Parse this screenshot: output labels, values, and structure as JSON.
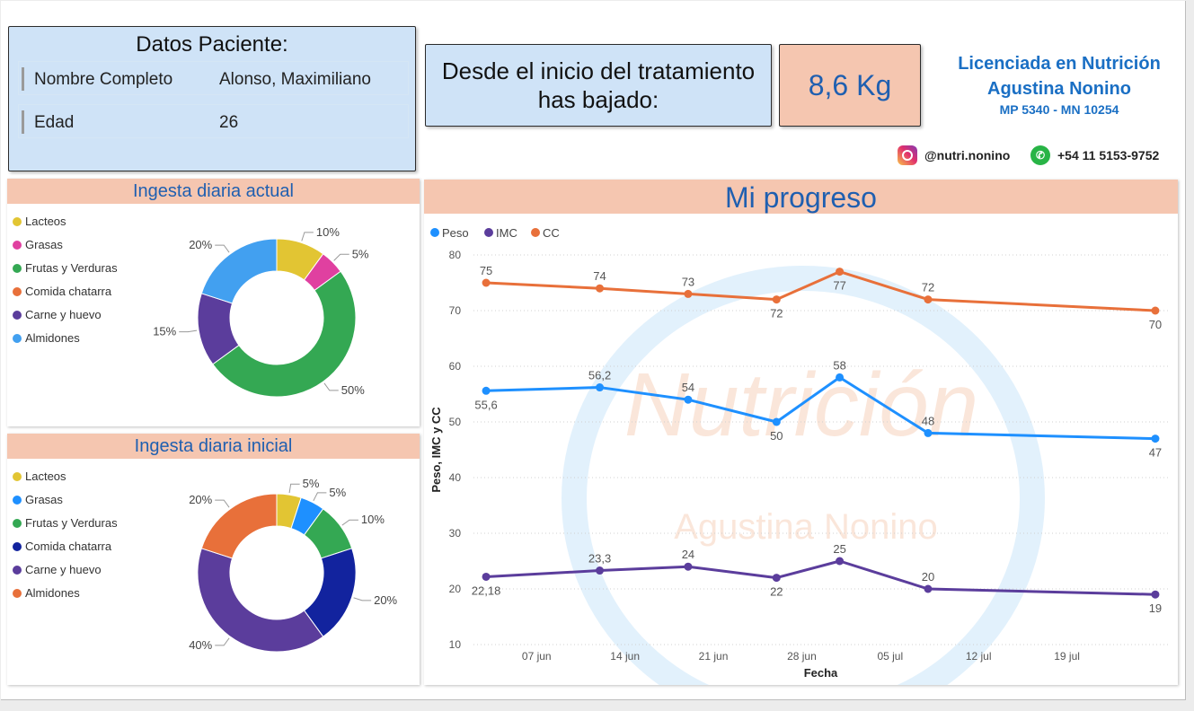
{
  "patient": {
    "title": "Datos Paciente:",
    "name_label": "Nombre Completo",
    "name_value": "Alonso, Maximiliano",
    "age_label": "Edad",
    "age_value": "26"
  },
  "summary": {
    "label": "Desde el inicio del tratamiento has bajado:",
    "value": "8,6 Kg"
  },
  "brand": {
    "line1": "Licenciada en Nutrición",
    "line2": "Agustina Nonino",
    "line3": "MP 5340 - MN 10254",
    "instagram": "@nutri.nonino",
    "instagram_icon": "instagram-icon",
    "phone": "+54 11 5153-9752",
    "phone_icon": "whatsapp-icon"
  },
  "colors": {
    "header_bg": "#f5c6b0",
    "title_blue": "#1f5fb0",
    "panel_blue": "#cfe3f7"
  },
  "watermark": {
    "line1": "Nutrición",
    "line2": "Agustina Nonino"
  },
  "chart_data": [
    {
      "type": "pie",
      "variant": "donut",
      "title": "Ingesta diaria actual",
      "legend": "left",
      "categories": [
        "Lacteos",
        "Grasas",
        "Frutas y Verduras",
        "Comida chatarra",
        "Carne y huevo",
        "Almidones"
      ],
      "colors": [
        "#e2c533",
        "#e040a0",
        "#34a853",
        "#e8703a",
        "#5b3d9c",
        "#42a0f0"
      ],
      "values": [
        10,
        5,
        50,
        0,
        15,
        20
      ],
      "slice_order": [
        "Lacteos",
        "Grasas",
        "Frutas y Verduras",
        "Carne y huevo",
        "Almidones"
      ],
      "labels": [
        "10%",
        "5%",
        "50%",
        "15%",
        "20%"
      ]
    },
    {
      "type": "pie",
      "variant": "donut",
      "title": "Ingesta diaria inicial",
      "legend": "left",
      "categories": [
        "Lacteos",
        "Grasas",
        "Frutas y Verduras",
        "Comida chatarra",
        "Carne y huevo",
        "Almidones"
      ],
      "colors": [
        "#e2c533",
        "#1e90ff",
        "#34a853",
        "#12239e",
        "#5b3d9c",
        "#e8703a"
      ],
      "values": [
        5,
        5,
        10,
        20,
        40,
        20
      ],
      "slice_order": [
        "Lacteos",
        "Grasas",
        "Frutas y Verduras",
        "Comida chatarra",
        "Carne y huevo",
        "Almidones"
      ],
      "labels": [
        "5%",
        "5%",
        "10%",
        "20%",
        "40%",
        "20%"
      ]
    },
    {
      "type": "line",
      "title": "Mi progreso",
      "xlabel": "Fecha",
      "ylabel": "Peso, IMC y CC",
      "ylim": [
        10,
        80
      ],
      "yticks": [
        10,
        20,
        30,
        40,
        50,
        60,
        70,
        80
      ],
      "xlim": [
        "2023-06-02",
        "2023-07-27"
      ],
      "xticks": [
        "2023-06-07",
        "2023-06-14",
        "2023-06-21",
        "2023-06-28",
        "2023-07-05",
        "2023-07-12",
        "2023-07-19"
      ],
      "xtick_labels": [
        "07 jun",
        "14 jun",
        "21 jun",
        "28 jun",
        "05 jul",
        "12 jul",
        "19 jul"
      ],
      "x": [
        "2023-06-03",
        "2023-06-12",
        "2023-06-19",
        "2023-06-26",
        "2023-07-01",
        "2023-07-08",
        "2023-07-26"
      ],
      "grid": true,
      "legend": "top-left",
      "series": [
        {
          "name": "Peso",
          "color": "#1e90ff",
          "values": [
            55.6,
            56.2,
            54,
            50,
            58,
            48,
            47
          ],
          "labels": [
            "55,6",
            "56,2",
            "54",
            "50",
            "58",
            "48",
            "47"
          ],
          "label_pos": [
            "below",
            "above",
            "above",
            "below",
            "above",
            "above",
            "below"
          ]
        },
        {
          "name": "IMC",
          "color": "#5b3d9c",
          "values": [
            22.18,
            23.3,
            24,
            22,
            25,
            20,
            19
          ],
          "labels": [
            "22,18",
            "23,3",
            "24",
            "22",
            "25",
            "20",
            "19"
          ],
          "label_pos": [
            "below",
            "above",
            "above",
            "below",
            "above",
            "above",
            "below"
          ]
        },
        {
          "name": "CC",
          "color": "#e8703a",
          "values": [
            75,
            74,
            73,
            72,
            77,
            72,
            70
          ],
          "labels": [
            "75",
            "74",
            "73",
            "72",
            "77",
            "72",
            "70"
          ],
          "label_pos": [
            "above",
            "above",
            "above",
            "below",
            "below",
            "above",
            "below"
          ]
        }
      ]
    }
  ]
}
